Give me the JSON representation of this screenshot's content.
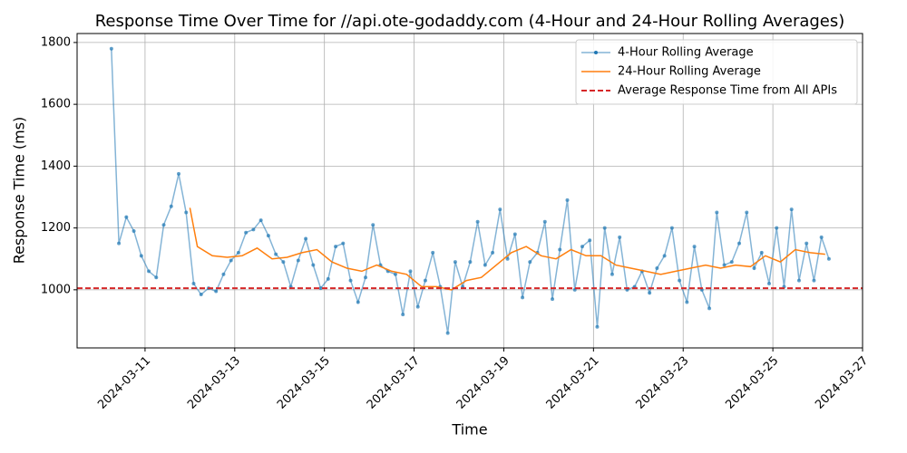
{
  "chart_data": {
    "type": "line",
    "title": "Response Time Over Time for //api.ote-godaddy.com (4-Hour and 24-Hour Rolling Averages)",
    "x_label": "Time",
    "y_label": "Response Time (ms)",
    "xlim": [
      "2024-03-09 11:38",
      "2024-03-27 00:00"
    ],
    "xticks": [
      "2024-03-11",
      "2024-03-13",
      "2024-03-15",
      "2024-03-17",
      "2024-03-19",
      "2024-03-21",
      "2024-03-23",
      "2024-03-25",
      "2024-03-27"
    ],
    "ylim": [
      812,
      1829
    ],
    "yticks": [
      1000,
      1200,
      1400,
      1600,
      1800
    ],
    "grid": true,
    "legend": "upper right",
    "series": [
      {
        "name": "4-Hour Rolling Average",
        "color": "#1f77b4",
        "markers": true,
        "x": [
          "2024-03-10 06:00",
          "2024-03-10 10:00",
          "2024-03-10 14:00",
          "2024-03-10 18:00",
          "2024-03-10 22:00",
          "2024-03-11 02:00",
          "2024-03-11 06:00",
          "2024-03-11 10:00",
          "2024-03-11 14:00",
          "2024-03-11 18:00",
          "2024-03-11 22:00",
          "2024-03-12 02:00",
          "2024-03-12 06:00",
          "2024-03-12 10:00",
          "2024-03-12 14:00",
          "2024-03-12 18:00",
          "2024-03-12 22:00",
          "2024-03-13 02:00",
          "2024-03-13 06:00",
          "2024-03-13 10:00",
          "2024-03-13 14:00",
          "2024-03-13 18:00",
          "2024-03-13 22:00",
          "2024-03-14 02:00",
          "2024-03-14 06:00",
          "2024-03-14 10:00",
          "2024-03-14 14:00",
          "2024-03-14 18:00",
          "2024-03-14 22:00",
          "2024-03-15 02:00",
          "2024-03-15 06:00",
          "2024-03-15 10:00",
          "2024-03-15 14:00",
          "2024-03-15 18:00",
          "2024-03-15 22:00",
          "2024-03-16 02:00",
          "2024-03-16 06:00",
          "2024-03-16 10:00",
          "2024-03-16 14:00",
          "2024-03-16 18:00",
          "2024-03-16 22:00",
          "2024-03-17 02:00",
          "2024-03-17 06:00",
          "2024-03-17 10:00",
          "2024-03-17 14:00",
          "2024-03-17 18:00",
          "2024-03-17 22:00",
          "2024-03-18 02:00",
          "2024-03-18 06:00",
          "2024-03-18 10:00",
          "2024-03-18 14:00",
          "2024-03-18 18:00",
          "2024-03-18 22:00",
          "2024-03-19 02:00",
          "2024-03-19 06:00",
          "2024-03-19 10:00",
          "2024-03-19 14:00",
          "2024-03-19 18:00",
          "2024-03-19 22:00",
          "2024-03-20 02:00",
          "2024-03-20 06:00",
          "2024-03-20 10:00",
          "2024-03-20 14:00",
          "2024-03-20 18:00",
          "2024-03-20 22:00",
          "2024-03-21 02:00",
          "2024-03-21 06:00",
          "2024-03-21 10:00",
          "2024-03-21 14:00",
          "2024-03-21 18:00",
          "2024-03-21 22:00",
          "2024-03-22 02:00",
          "2024-03-22 06:00",
          "2024-03-22 10:00",
          "2024-03-22 14:00",
          "2024-03-22 18:00",
          "2024-03-22 22:00",
          "2024-03-23 02:00",
          "2024-03-23 06:00",
          "2024-03-23 10:00",
          "2024-03-23 14:00",
          "2024-03-23 18:00",
          "2024-03-23 22:00",
          "2024-03-24 02:00",
          "2024-03-24 06:00",
          "2024-03-24 10:00",
          "2024-03-24 14:00",
          "2024-03-24 18:00",
          "2024-03-24 22:00",
          "2024-03-25 02:00",
          "2024-03-25 06:00",
          "2024-03-25 10:00",
          "2024-03-25 14:00",
          "2024-03-25 18:00",
          "2024-03-25 22:00",
          "2024-03-26 02:00",
          "2024-03-26 06:00"
        ],
        "values": [
          1780,
          1150,
          1235,
          1190,
          1110,
          1060,
          1040,
          1210,
          1270,
          1375,
          1250,
          1020,
          985,
          1005,
          995,
          1050,
          1095,
          1120,
          1185,
          1195,
          1225,
          1175,
          1115,
          1090,
          1010,
          1095,
          1165,
          1080,
          1005,
          1035,
          1140,
          1150,
          1030,
          960,
          1040,
          1210,
          1080,
          1060,
          1050,
          920,
          1060,
          945,
          1030,
          1120,
          1010,
          860,
          1090,
          1010,
          1090,
          1220,
          1080,
          1120,
          1260,
          1100,
          1180,
          975,
          1090,
          1120,
          1220,
          970,
          1130,
          1290,
          1000,
          1140,
          1160,
          880,
          1200,
          1050,
          1170,
          1000,
          1010,
          1060,
          990,
          1070,
          1110,
          1200,
          1030,
          960,
          1140,
          1000,
          940,
          1250,
          1080,
          1090,
          1150,
          1250,
          1070,
          1120,
          1020,
          1200,
          1010,
          1260,
          1030,
          1150,
          1030,
          1170,
          1100
        ]
      },
      {
        "name": "24-Hour Rolling Average",
        "color": "#ff7f0e",
        "markers": false,
        "x": [
          "2024-03-12 00:00",
          "2024-03-12 04:00",
          "2024-03-12 12:00",
          "2024-03-12 20:00",
          "2024-03-13 04:00",
          "2024-03-13 12:00",
          "2024-03-13 20:00",
          "2024-03-14 04:00",
          "2024-03-14 12:00",
          "2024-03-14 20:00",
          "2024-03-15 04:00",
          "2024-03-15 12:00",
          "2024-03-15 20:00",
          "2024-03-16 04:00",
          "2024-03-16 12:00",
          "2024-03-16 20:00",
          "2024-03-17 04:00",
          "2024-03-17 12:00",
          "2024-03-17 20:00",
          "2024-03-18 04:00",
          "2024-03-18 12:00",
          "2024-03-18 20:00",
          "2024-03-19 04:00",
          "2024-03-19 12:00",
          "2024-03-19 20:00",
          "2024-03-20 04:00",
          "2024-03-20 12:00",
          "2024-03-20 20:00",
          "2024-03-21 04:00",
          "2024-03-21 12:00",
          "2024-03-21 20:00",
          "2024-03-22 04:00",
          "2024-03-22 12:00",
          "2024-03-22 20:00",
          "2024-03-23 04:00",
          "2024-03-23 12:00",
          "2024-03-23 20:00",
          "2024-03-24 04:00",
          "2024-03-24 12:00",
          "2024-03-24 20:00",
          "2024-03-25 04:00",
          "2024-03-25 12:00",
          "2024-03-25 20:00",
          "2024-03-26 04:00"
        ],
        "values": [
          1265,
          1140,
          1110,
          1105,
          1110,
          1135,
          1100,
          1105,
          1120,
          1130,
          1090,
          1070,
          1060,
          1080,
          1060,
          1050,
          1010,
          1010,
          1000,
          1030,
          1040,
          1080,
          1120,
          1140,
          1110,
          1100,
          1130,
          1110,
          1110,
          1080,
          1070,
          1060,
          1050,
          1060,
          1070,
          1080,
          1070,
          1080,
          1075,
          1110,
          1090,
          1130,
          1120,
          1115
        ]
      }
    ],
    "reference_line": {
      "name": "Average Response Time from All APIs",
      "value": 1005,
      "color": "#d62728"
    }
  }
}
